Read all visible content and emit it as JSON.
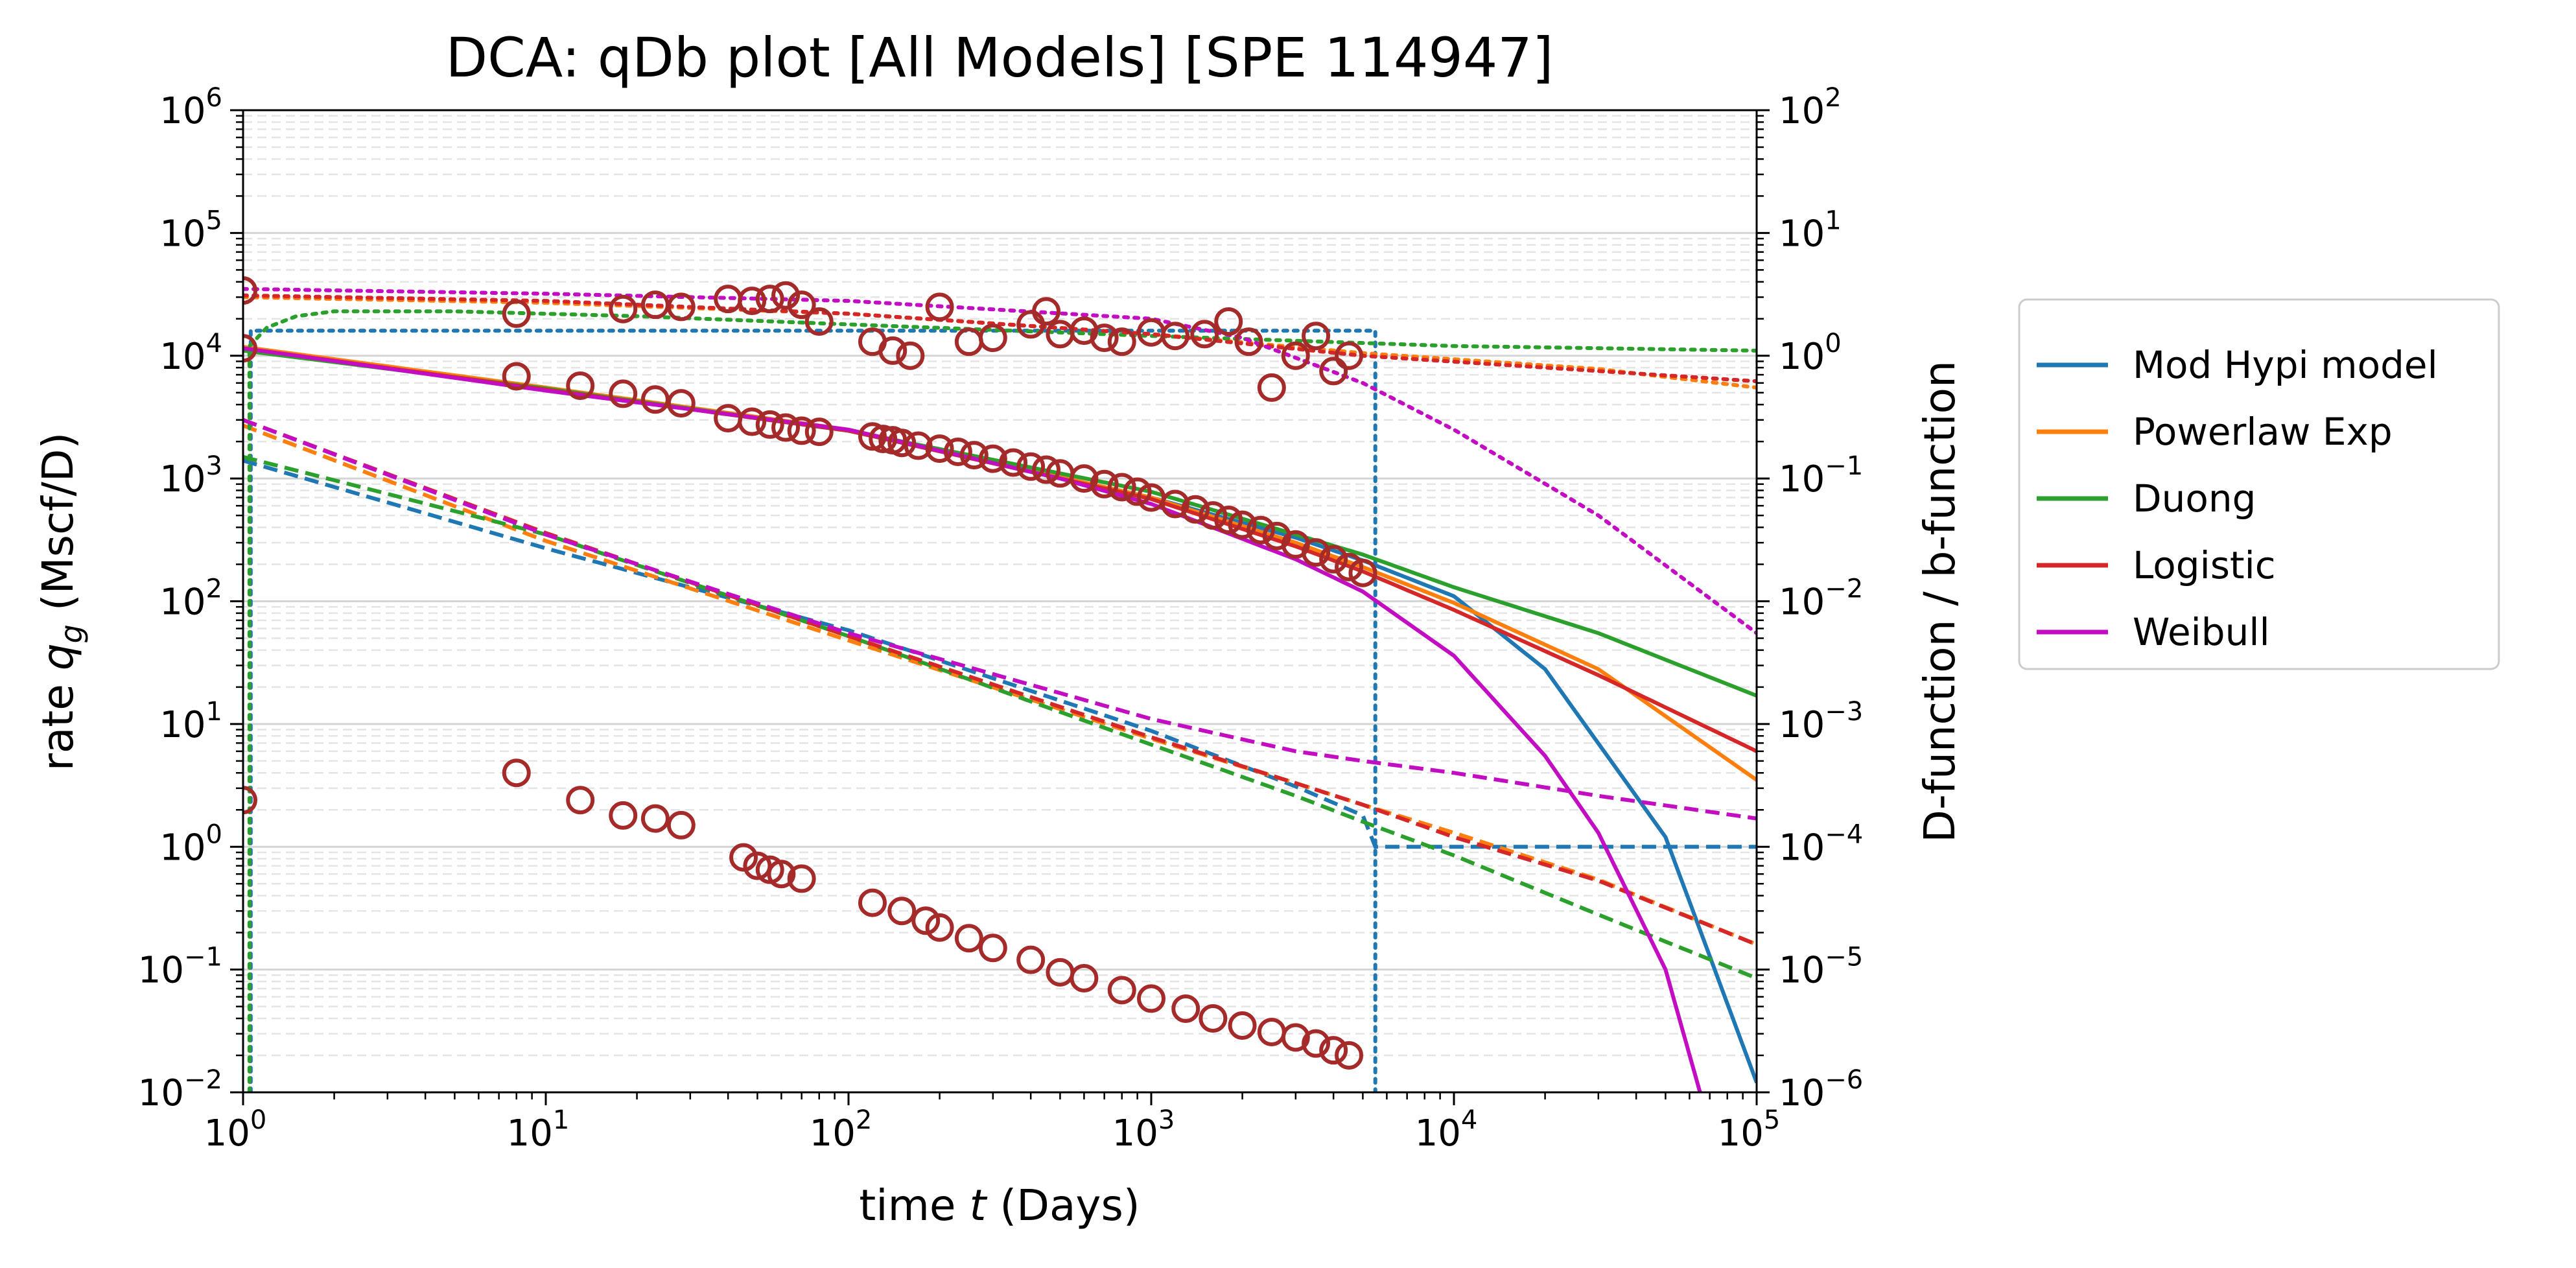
{
  "chart_data": {
    "type": "line",
    "title": "DCA: qDb plot  [All Models]  [SPE 114947]",
    "xlabel_pre": "time ",
    "xlabel_var": "t",
    "xlabel_post": " (Days)",
    "ylabel_pre": "rate ",
    "ylabel_var": "q",
    "ylabel_sub": "g",
    "ylabel_post": " (Mscf/D)",
    "y2label": "D-function / b-function",
    "x_scale": "log",
    "y_scale": "log",
    "y2_scale": "log",
    "xlim": [
      1,
      100000
    ],
    "ylim": [
      0.01,
      1000000
    ],
    "y2lim": [
      1e-06,
      100
    ],
    "grid": "major and minor horizontal",
    "legend_placement": "outside right",
    "x_ticks": [
      {
        "base": "10",
        "exp": "0"
      },
      {
        "base": "10",
        "exp": "1"
      },
      {
        "base": "10",
        "exp": "2"
      },
      {
        "base": "10",
        "exp": "3"
      },
      {
        "base": "10",
        "exp": "4"
      },
      {
        "base": "10",
        "exp": "5"
      }
    ],
    "y_ticks": [
      {
        "base": "10",
        "exp": "−2"
      },
      {
        "base": "10",
        "exp": "−1"
      },
      {
        "base": "10",
        "exp": "0"
      },
      {
        "base": "10",
        "exp": "1"
      },
      {
        "base": "10",
        "exp": "2"
      },
      {
        "base": "10",
        "exp": "3"
      },
      {
        "base": "10",
        "exp": "4"
      },
      {
        "base": "10",
        "exp": "5"
      },
      {
        "base": "10",
        "exp": "6"
      }
    ],
    "y2_ticks": [
      {
        "base": "10",
        "exp": "−6"
      },
      {
        "base": "10",
        "exp": "−5"
      },
      {
        "base": "10",
        "exp": "−4"
      },
      {
        "base": "10",
        "exp": "−3"
      },
      {
        "base": "10",
        "exp": "−2"
      },
      {
        "base": "10",
        "exp": "−1"
      },
      {
        "base": "10",
        "exp": "0"
      },
      {
        "base": "10",
        "exp": "1"
      },
      {
        "base": "10",
        "exp": "2"
      }
    ],
    "colors": {
      "data_markers": "#a52a2a",
      "grid": "#d9d9d9"
    },
    "series": [
      {
        "name": "Mod Hypi model",
        "color": "#1f77b4",
        "rate": {
          "t": [
            1,
            10,
            100,
            1000,
            3000,
            5000,
            10000,
            20000,
            50000,
            100000
          ],
          "q": [
            11500,
            5300,
            2450,
            700,
            330,
            215,
            110,
            28,
            1.2,
            0.012
          ]
        },
        "D": {
          "t": [
            1,
            10,
            100,
            1000,
            3000,
            5000,
            5500,
            10000,
            100000
          ],
          "d": [
            0.14,
            0.027,
            0.0058,
            0.00088,
            0.00031,
            0.00018,
            0.0001,
            0.0001,
            0.0001
          ]
        },
        "b": {
          "t": [
            1.06,
            1.06,
            3000,
            5500,
            5500
          ],
          "b": [
            1e-06,
            1.6,
            1.6,
            1.6,
            1e-06
          ]
        }
      },
      {
        "name": "Powerlaw Exp",
        "color": "#ff7f0e",
        "rate": {
          "t": [
            1,
            10,
            100,
            1000,
            3000,
            5000,
            10000,
            30000,
            100000
          ],
          "q": [
            11800,
            5500,
            2500,
            700,
            300,
            190,
            97,
            28,
            3.5
          ]
        },
        "D": {
          "t": [
            1,
            10,
            100,
            1000,
            3000,
            5000,
            10000,
            30000,
            100000
          ],
          "d": [
            0.27,
            0.031,
            0.0048,
            0.00076,
            0.00033,
            0.00022,
            0.00013,
            5.4e-05,
            1.6e-05
          ]
        },
        "b": {
          "t": [
            1,
            10,
            100,
            1000,
            5000,
            30000,
            100000
          ],
          "b": [
            3.0,
            2.7,
            2.2,
            1.5,
            1.05,
            0.78,
            0.55
          ]
        }
      },
      {
        "name": "Duong",
        "color": "#2ca02c",
        "rate": {
          "t": [
            1,
            10,
            100,
            1000,
            3000,
            5000,
            10000,
            30000,
            100000
          ],
          "q": [
            11000,
            5400,
            2450,
            780,
            350,
            240,
            130,
            55,
            17
          ]
        },
        "D": {
          "t": [
            1,
            10,
            100,
            1000,
            3000,
            5000,
            10000,
            30000,
            100000
          ],
          "d": [
            0.15,
            0.035,
            0.0052,
            0.00068,
            0.00026,
            0.00016,
            8.5e-05,
            2.8e-05,
            8.5e-06
          ]
        },
        "b": {
          "t": [
            1.05,
            1.05,
            1.2,
            1.5,
            2,
            5,
            20,
            100,
            1000,
            10000,
            100000
          ],
          "b": [
            1e-06,
            1.2,
            1.7,
            2.1,
            2.3,
            2.3,
            2.1,
            1.8,
            1.45,
            1.2,
            1.1
          ]
        }
      },
      {
        "name": "Logistic",
        "color": "#d62728",
        "rate": {
          "t": [
            1,
            10,
            100,
            1000,
            3000,
            5000,
            10000,
            30000,
            100000
          ],
          "q": [
            11500,
            5300,
            2450,
            680,
            280,
            175,
            85,
            25,
            6
          ]
        },
        "D": {
          "t": [
            1,
            10,
            100,
            1000,
            3000,
            5000,
            10000,
            30000,
            100000
          ],
          "d": [
            0.3,
            0.036,
            0.0052,
            0.00078,
            0.00033,
            0.00022,
            0.00012,
            5.3e-05,
            1.6e-05
          ]
        },
        "b": {
          "t": [
            1,
            10,
            100,
            1000,
            5000,
            30000,
            100000
          ],
          "b": [
            3.1,
            2.8,
            2.2,
            1.5,
            1.0,
            0.75,
            0.62
          ]
        }
      },
      {
        "name": "Weibull",
        "color": "#c20dc2",
        "rate": {
          "t": [
            1,
            10,
            100,
            500,
            1000,
            3000,
            5000,
            10000,
            20000,
            30000,
            50000,
            65000
          ],
          "q": [
            11500,
            5200,
            2500,
            1000,
            620,
            220,
            120,
            36,
            5.5,
            1.3,
            0.1,
            0.01
          ]
        },
        "D": {
          "t": [
            1,
            10,
            100,
            1000,
            3000,
            5000,
            10000,
            30000,
            100000
          ],
          "d": [
            0.3,
            0.035,
            0.0055,
            0.0011,
            0.0006,
            0.0005,
            0.0004,
            0.00026,
            0.00017
          ]
        },
        "b": {
          "t": [
            1,
            10,
            100,
            1000,
            2000,
            5000,
            10000,
            30000,
            100000
          ],
          "b": [
            3.5,
            3.2,
            2.8,
            2.0,
            1.4,
            0.6,
            0.25,
            0.05,
            0.0055
          ]
        }
      }
    ],
    "observed": {
      "rate": {
        "t": [
          1,
          8,
          13,
          18,
          23,
          28,
          40,
          48,
          55,
          62,
          70,
          80,
          120,
          130,
          140,
          150,
          170,
          200,
          230,
          260,
          300,
          350,
          400,
          450,
          500,
          600,
          700,
          800,
          900,
          1000,
          1200,
          1400,
          1600,
          1800,
          2000,
          2300,
          2600,
          3000,
          3500,
          4000,
          4500,
          5000
        ],
        "q": [
          11500,
          6800,
          5700,
          4900,
          4400,
          4100,
          3100,
          2900,
          2750,
          2600,
          2450,
          2400,
          2200,
          2100,
          2050,
          1950,
          1850,
          1750,
          1650,
          1550,
          1450,
          1350,
          1250,
          1180,
          1100,
          1000,
          900,
          850,
          780,
          700,
          620,
          560,
          500,
          460,
          420,
          380,
          340,
          290,
          250,
          220,
          190,
          170
        ]
      },
      "D": {
        "t": [
          1,
          8,
          13,
          18,
          23,
          28,
          45,
          50,
          55,
          60,
          70,
          120,
          150,
          180,
          200,
          250,
          300,
          400,
          500,
          600,
          800,
          1000,
          1300,
          1600,
          2000,
          2500,
          3000,
          3500,
          4000,
          4500
        ],
        "d": [
          0.00024,
          0.0004,
          0.00024,
          0.00018,
          0.00017,
          0.00015,
          8.2e-05,
          7e-05,
          6.5e-05,
          6e-05,
          5.5e-05,
          3.5e-05,
          3e-05,
          2.5e-05,
          2.2e-05,
          1.8e-05,
          1.5e-05,
          1.2e-05,
          9.5e-06,
          8.5e-06,
          6.8e-06,
          5.8e-06,
          4.8e-06,
          4e-06,
          3.5e-06,
          3.1e-06,
          2.8e-06,
          2.5e-06,
          2.2e-06,
          2e-06
        ]
      },
      "b": {
        "t": [
          1,
          8,
          18,
          23,
          28,
          40,
          48,
          55,
          62,
          70,
          80,
          120,
          140,
          160,
          200,
          250,
          300,
          400,
          450,
          500,
          600,
          700,
          800,
          1000,
          1200,
          1500,
          1800,
          2100,
          2500,
          3000,
          3500,
          4000,
          4500
        ],
        "b": [
          3.4,
          2.2,
          2.4,
          2.6,
          2.5,
          2.9,
          2.8,
          2.9,
          3.1,
          2.6,
          1.9,
          1.3,
          1.1,
          1.0,
          2.5,
          1.3,
          1.4,
          1.8,
          2.3,
          1.5,
          1.6,
          1.4,
          1.3,
          1.55,
          1.45,
          1.5,
          1.9,
          1.3,
          0.55,
          1.0,
          1.45,
          0.75,
          1.0
        ]
      }
    }
  }
}
